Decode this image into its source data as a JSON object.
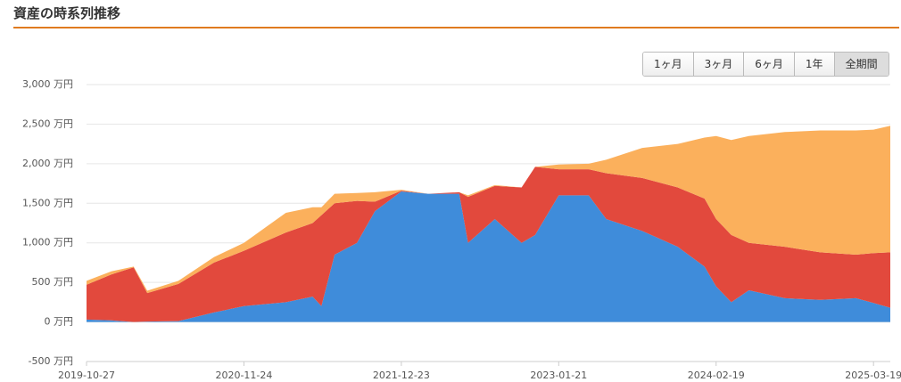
{
  "chart_data": {
    "type": "stacked_area",
    "title": "資産の時系列推移",
    "x": [
      "2019-10-27",
      "2019-12-28",
      "2020-02-22",
      "2020-03-27",
      "2020-06-13",
      "2020-09-10",
      "2020-11-24",
      "2021-03-09",
      "2021-05-15",
      "2021-06-06",
      "2021-07-09",
      "2021-09-03",
      "2021-10-18",
      "2021-12-23",
      "2022-02-28",
      "2022-05-17",
      "2022-06-08",
      "2022-08-14",
      "2022-10-20",
      "2022-11-23",
      "2023-01-21",
      "2023-04-06",
      "2023-05-20",
      "2023-08-18",
      "2023-11-15",
      "2024-01-21",
      "2024-02-19",
      "2024-03-28",
      "2024-05-11",
      "2024-08-09",
      "2024-11-06",
      "2025-02-03",
      "2025-03-19",
      "2025-04-30"
    ],
    "series": [
      {
        "color": "#3f8cda",
        "values": [
          30,
          20,
          0,
          5,
          10,
          120,
          200,
          250,
          320,
          200,
          850,
          1000,
          1400,
          1650,
          1620,
          1620,
          1000,
          1300,
          1000,
          1100,
          1600,
          1600,
          1300,
          1150,
          950,
          700,
          450,
          250,
          400,
          300,
          280,
          300,
          240,
          180
        ]
      },
      {
        "color": "#e2493d",
        "values": [
          440,
          580,
          690,
          360,
          470,
          630,
          700,
          880,
          930,
          1150,
          650,
          530,
          120,
          10,
          0,
          20,
          580,
          420,
          700,
          860,
          330,
          330,
          580,
          670,
          750,
          860,
          850,
          850,
          600,
          650,
          600,
          550,
          630,
          700
        ]
      },
      {
        "color": "#fbb05c",
        "values": [
          50,
          40,
          10,
          30,
          40,
          70,
          100,
          250,
          200,
          100,
          120,
          100,
          120,
          10,
          0,
          0,
          20,
          10,
          0,
          0,
          60,
          70,
          170,
          380,
          550,
          770,
          1050,
          1200,
          1350,
          1450,
          1540,
          1570,
          1560,
          1600
        ]
      }
    ],
    "xlim": [
      "2019-10-27",
      "2025-04-30"
    ],
    "xticks": [
      "2019-10-27",
      "2020-11-24",
      "2021-12-23",
      "2023-01-21",
      "2024-02-19",
      "2025-03-19"
    ],
    "ylim": [
      -500,
      3000
    ],
    "yticks": [
      {
        "value": -500,
        "label": "-500 万円"
      },
      {
        "value": 0,
        "label": "0 万円"
      },
      {
        "value": 500,
        "label": "500 万円"
      },
      {
        "value": 1000,
        "label": "1,000 万円"
      },
      {
        "value": 1500,
        "label": "1,500 万円"
      },
      {
        "value": 2000,
        "label": "2,000 万円"
      },
      {
        "value": 2500,
        "label": "2,500 万円"
      },
      {
        "value": 3000,
        "label": "3,000 万円"
      }
    ],
    "grid": true
  },
  "range_buttons": {
    "labels": [
      "1ヶ月",
      "3ヶ月",
      "6ヶ月",
      "1年",
      "全期間"
    ],
    "active": 4
  }
}
